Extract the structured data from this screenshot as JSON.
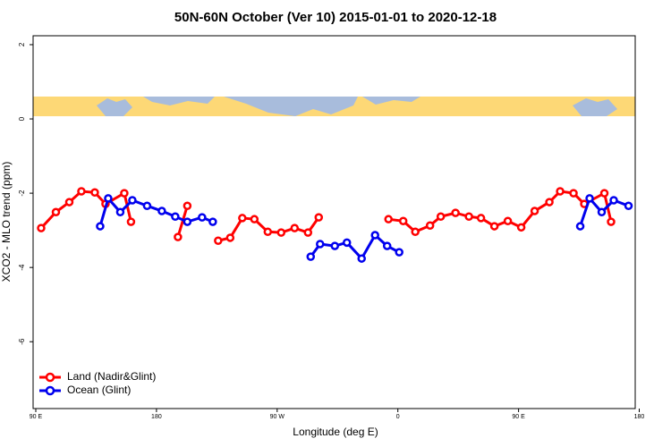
{
  "chart_data": {
    "type": "line",
    "title": "50N-60N October (Ver 10)   2015-01-01 to 2020-12-18",
    "x_label": "Longitude (deg E)",
    "y_label": "XCO2 - MLO trend (ppm)",
    "xlim": [
      88,
      537
    ],
    "ylim": [
      -7.8,
      2.24
    ],
    "xticks": [
      {
        "value": 90,
        "label": "90 E"
      },
      180,
      {
        "value": 270,
        "label": "90 W"
      },
      {
        "value": 360,
        "label": "0"
      },
      {
        "value": 450,
        "label": "90 E"
      },
      {
        "value": 540,
        "label": "180"
      }
    ],
    "yticks": [
      -6,
      -4,
      -2,
      0,
      2
    ],
    "legend": "bottom-left",
    "series": [
      {
        "name": "Land (Nadir&Glint)",
        "color": "#ff0000",
        "x": [
          94,
          105,
          115,
          124,
          134,
          142,
          156,
          161,
          null,
          196,
          203,
          null,
          226,
          235,
          244,
          253,
          263,
          273,
          283,
          293,
          301,
          null,
          353,
          364,
          373,
          384,
          392,
          403,
          413,
          422,
          432,
          442,
          452,
          462,
          473,
          481,
          491,
          499,
          514,
          519
        ],
        "values": [
          -2.94,
          -2.51,
          -2.24,
          -1.95,
          -1.98,
          -2.29,
          -2.0,
          -2.77,
          null,
          -3.18,
          -2.34,
          null,
          -3.28,
          -3.2,
          -2.67,
          -2.7,
          -3.04,
          -3.06,
          -2.94,
          -3.06,
          -2.65,
          null,
          -2.7,
          -2.75,
          -3.04,
          -2.87,
          -2.63,
          -2.53,
          -2.63,
          -2.67,
          -2.89,
          -2.75,
          -2.92,
          -2.48,
          -2.24,
          -1.95,
          -2.0,
          -2.29,
          -2.0,
          -2.77
        ]
      },
      {
        "name": "Ocean (Glint)",
        "color": "#0000ee",
        "x": [
          138,
          144,
          153,
          162,
          173,
          184,
          194,
          203,
          214,
          222,
          null,
          295,
          302,
          313,
          322,
          333,
          343,
          352,
          361,
          null,
          496,
          503,
          512,
          521,
          532
        ],
        "values": [
          -2.89,
          -2.14,
          -2.51,
          -2.19,
          -2.34,
          -2.48,
          -2.63,
          -2.77,
          -2.65,
          -2.77,
          null,
          -3.71,
          -3.37,
          -3.42,
          -3.33,
          -3.76,
          -3.13,
          -3.42,
          -3.59,
          null,
          -2.89,
          -2.14,
          -2.51,
          -2.19,
          -2.34
        ]
      }
    ]
  }
}
